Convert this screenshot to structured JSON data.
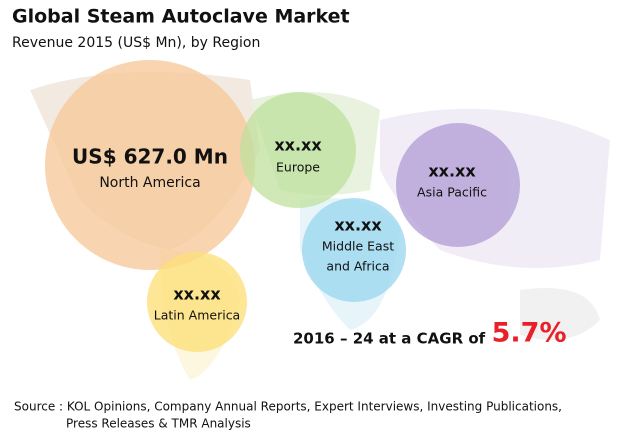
{
  "header": {
    "title": "Global Steam Autoclave Market",
    "subtitle": "Revenue 2015 (US$ Mn), by Region"
  },
  "regions": [
    {
      "value": "US$ 627.0 Mn",
      "label": [
        "North America"
      ]
    },
    {
      "value": "xx.xx",
      "label": [
        "Europe"
      ]
    },
    {
      "value": "xx.xx",
      "label": [
        "Asia Pacific"
      ]
    },
    {
      "value": "xx.xx",
      "label": [
        "Middle East",
        "and Africa"
      ]
    },
    {
      "value": "xx.xx",
      "label": [
        "Latin America"
      ]
    }
  ],
  "cagr": {
    "text": "2016 – 24 at a CAGR of",
    "rate": "5.7%"
  },
  "source": [
    "Source : KOL Opinions, Company Annual Reports, Expert Interviews, Investing Publications,",
    "Press Releases & TMR Analysis"
  ]
}
